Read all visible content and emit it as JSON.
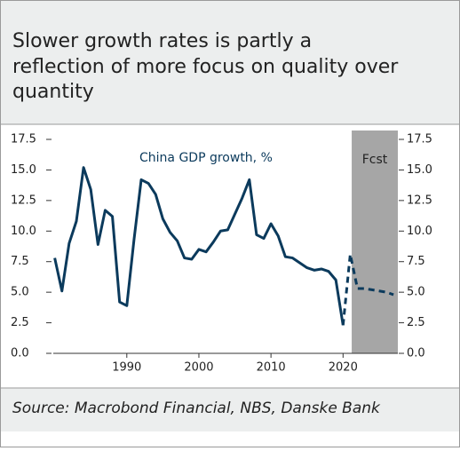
{
  "chart_data": {
    "type": "line",
    "title": [
      "Slower growth rates is partly a",
      "reflection of more focus on quality over",
      "quantity"
    ],
    "annotation": "China GDP growth, %",
    "source": "Source: Macrobond Financial, NBS, Danske Bank",
    "shade": {
      "label": "Fcst",
      "from": 2021.2,
      "to": 2027.6,
      "color": "#a6a6a6"
    },
    "x": [
      1980,
      1981,
      1982,
      1983,
      1984,
      1985,
      1986,
      1987,
      1988,
      1989,
      1990,
      1991,
      1992,
      1993,
      1994,
      1995,
      1996,
      1997,
      1998,
      1999,
      2000,
      2001,
      2002,
      2003,
      2004,
      2005,
      2006,
      2007,
      2008,
      2009,
      2010,
      2011,
      2012,
      2013,
      2014,
      2015,
      2016,
      2017,
      2018,
      2019,
      2020,
      2021,
      2022,
      2023,
      2024,
      2025,
      2026,
      2027
    ],
    "series": [
      {
        "name": "China GDP growth, %",
        "color": "#0b3a5c",
        "dashed": false,
        "values": [
          7.8,
          5.1,
          9.0,
          10.8,
          15.2,
          13.4,
          8.9,
          11.7,
          11.2,
          4.2,
          3.9,
          9.3,
          14.2,
          13.9,
          13.0,
          11.0,
          9.9,
          9.2,
          7.8,
          7.7,
          8.5,
          8.3,
          9.1,
          10.0,
          10.1,
          11.4,
          12.7,
          14.2,
          9.7,
          9.4,
          10.6,
          9.6,
          7.9,
          7.8,
          7.4,
          7.0,
          6.8,
          6.9,
          6.7,
          6.0,
          2.3,
          null,
          null,
          null,
          null,
          null,
          null,
          null
        ]
      },
      {
        "color": "#0b3a5c",
        "dashed": true,
        "values": [
          null,
          null,
          null,
          null,
          null,
          null,
          null,
          null,
          null,
          null,
          null,
          null,
          null,
          null,
          null,
          null,
          null,
          null,
          null,
          null,
          null,
          null,
          null,
          null,
          null,
          null,
          null,
          null,
          null,
          null,
          null,
          null,
          null,
          null,
          null,
          null,
          null,
          null,
          null,
          null,
          2.3,
          8.1,
          5.3,
          5.3,
          5.2,
          5.1,
          5.0,
          4.8
        ]
      }
    ],
    "xlim": [
      1979.8,
      2027.6
    ],
    "xticks": [
      1990,
      2000,
      2010,
      2020
    ],
    "ylim": [
      0,
      17.5
    ],
    "yticks": [
      {
        "value": 0,
        "label": "0.0"
      },
      {
        "value": 2.5,
        "label": "2.5"
      },
      {
        "value": 5,
        "label": "5.0"
      },
      {
        "value": 7.5,
        "label": "7.5"
      },
      {
        "value": 10,
        "label": "10.0"
      },
      {
        "value": 12.5,
        "label": "12.5"
      },
      {
        "value": 15,
        "label": "15.0"
      },
      {
        "value": 17.5,
        "label": "17.5"
      }
    ],
    "y2lim": [
      0,
      17.5
    ],
    "y2ticks": [
      {
        "value": 0,
        "label": "0.0"
      },
      {
        "value": 2.5,
        "label": "2.5"
      },
      {
        "value": 5,
        "label": "5.0"
      },
      {
        "value": 7.5,
        "label": "7.5"
      },
      {
        "value": 10,
        "label": "10.0"
      },
      {
        "value": 12.5,
        "label": "12.5"
      },
      {
        "value": 15,
        "label": "15.0"
      },
      {
        "value": 17.5,
        "label": "17.5"
      }
    ]
  }
}
